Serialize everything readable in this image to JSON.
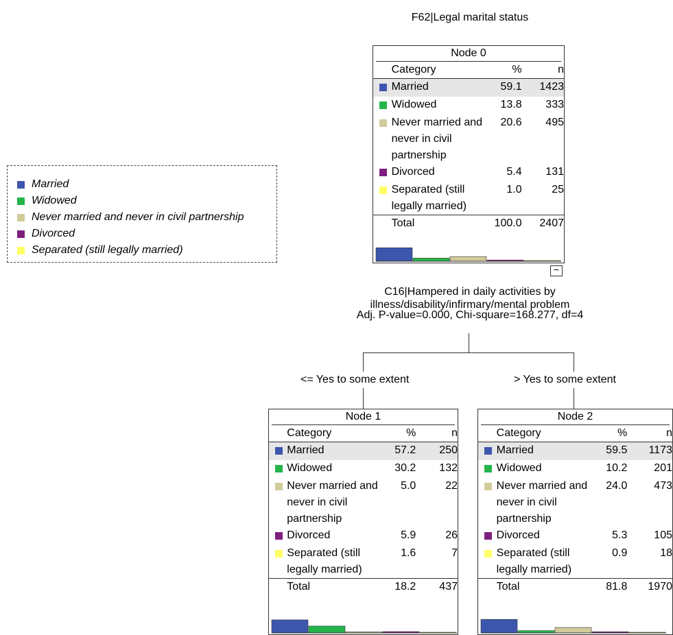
{
  "title": "F62|Legal marital status",
  "legend": [
    {
      "label": "Married",
      "color": "#3d56ad"
    },
    {
      "label": "Widowed",
      "color": "#24b44a"
    },
    {
      "label": "Never married and never in civil partnership",
      "color": "#d2cb9b"
    },
    {
      "label": "Divorced",
      "color": "#7d1f7f"
    },
    {
      "label": "Separated (still legally married)",
      "color": "#ffff66"
    }
  ],
  "headers": {
    "category": "Category",
    "pct": "%",
    "n": "n",
    "total": "Total"
  },
  "node0": {
    "title": "Node 0",
    "rows": [
      {
        "label": "Married",
        "pct": "59.1",
        "n": "1423"
      },
      {
        "label": "Widowed",
        "pct": "13.8",
        "n": "333"
      },
      {
        "label": "Never married and never in civil partnership",
        "pct": "20.6",
        "n": "495"
      },
      {
        "label": "Divorced",
        "pct": "5.4",
        "n": "131"
      },
      {
        "label": "Separated (still legally married)",
        "pct": "1.0",
        "n": "25"
      }
    ],
    "total_pct": "100.0",
    "total_n": "2407"
  },
  "split": {
    "line1": "C16|Hampered in daily activities by",
    "line2": "illness/disability/infirmary/mental problem",
    "line3": "Adj. P-value=0.000, Chi-square=168.277, df=4"
  },
  "branches": {
    "left": "<= Yes to some extent",
    "right": "> Yes to some extent"
  },
  "toggle": "−",
  "node1": {
    "title": "Node 1",
    "rows": [
      {
        "label": "Married",
        "pct": "57.2",
        "n": "250"
      },
      {
        "label": "Widowed",
        "pct": "30.2",
        "n": "132"
      },
      {
        "label": "Never married and never in civil partnership",
        "pct": "5.0",
        "n": "22"
      },
      {
        "label": "Divorced",
        "pct": "5.9",
        "n": "26"
      },
      {
        "label": "Separated (still legally married)",
        "pct": "1.6",
        "n": "7"
      }
    ],
    "total_pct": "18.2",
    "total_n": "437"
  },
  "node2": {
    "title": "Node 2",
    "rows": [
      {
        "label": "Married",
        "pct": "59.5",
        "n": "1173"
      },
      {
        "label": "Widowed",
        "pct": "10.2",
        "n": "201"
      },
      {
        "label": "Never married and never in civil partnership",
        "pct": "24.0",
        "n": "473"
      },
      {
        "label": "Divorced",
        "pct": "5.3",
        "n": "105"
      },
      {
        "label": "Separated (still legally married)",
        "pct": "0.9",
        "n": "18"
      }
    ],
    "total_pct": "81.8",
    "total_n": "1970"
  }
}
